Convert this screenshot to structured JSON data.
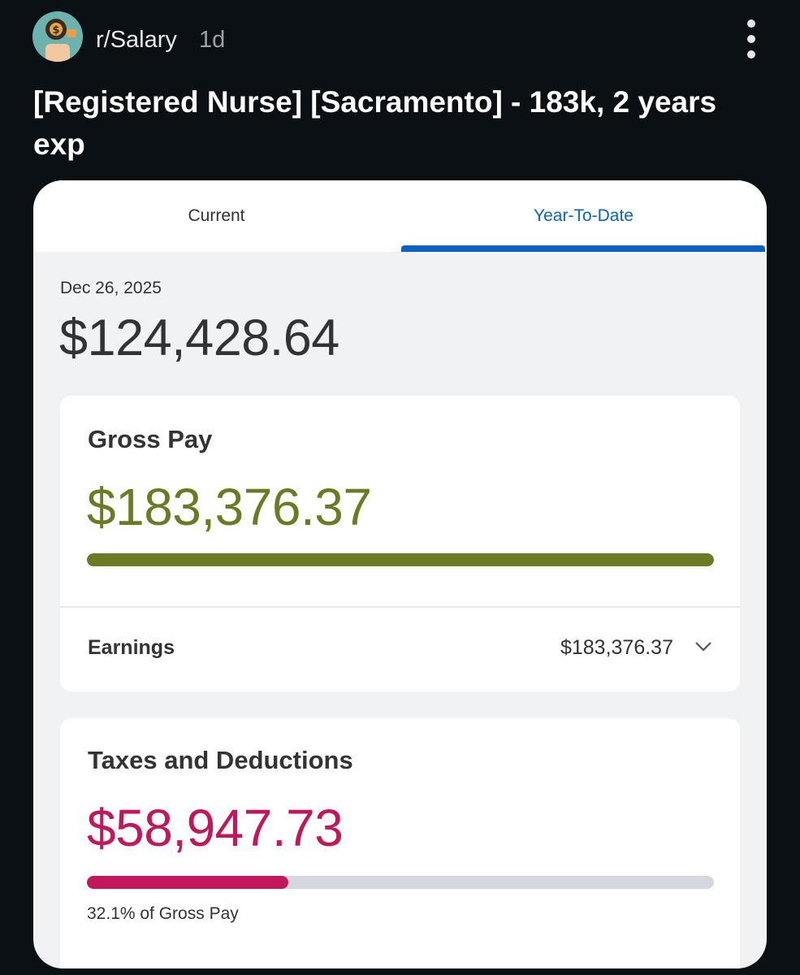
{
  "post": {
    "subreddit": "r/Salary",
    "age": "1d",
    "avatar_icon": "money-bag-icon",
    "more_icon": "more-vertical-icon",
    "title": "[Registered Nurse] [Sacramento] - 183k, 2 years exp"
  },
  "paystub": {
    "tabs": [
      {
        "label": "Current",
        "active": false
      },
      {
        "label": "Year-To-Date",
        "active": true
      }
    ],
    "date": "Dec 26, 2025",
    "net_amount": "$124,428.64",
    "gross": {
      "label": "Gross Pay",
      "amount": "$183,376.37",
      "bar_fraction": 1.0,
      "color": "#6b7a23"
    },
    "earnings": {
      "label": "Earnings",
      "amount": "$183,376.37",
      "icon": "chevron-down-icon"
    },
    "taxes": {
      "label": "Taxes and Deductions",
      "amount": "$58,947.73",
      "bar_fraction": 0.321,
      "note": "32.1% of Gross Pay",
      "color": "#c2185b"
    }
  },
  "colors": {
    "background": "#0b1015",
    "accent": "#0b62c4",
    "gross": "#6b7a23",
    "taxes": "#c2185b"
  }
}
